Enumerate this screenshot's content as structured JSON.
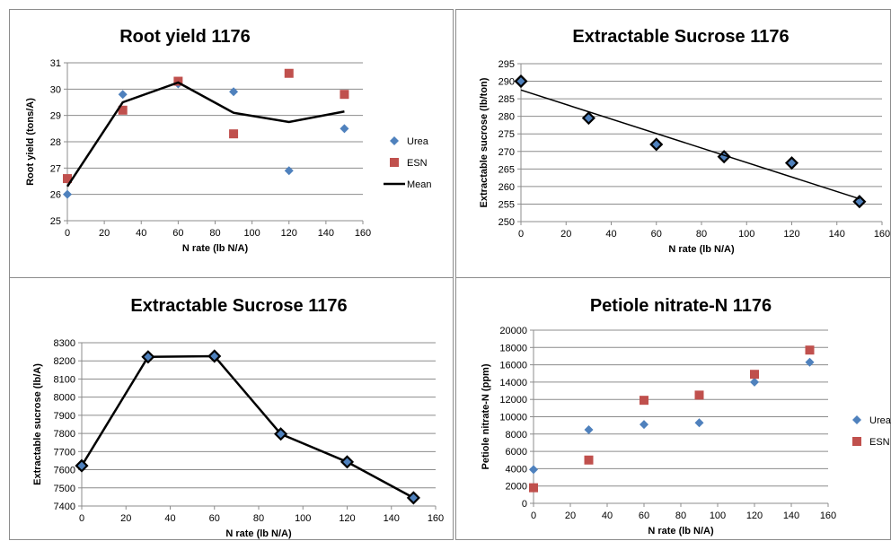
{
  "chart_data": [
    {
      "type": "scatter",
      "title": "Root yield 1176",
      "xlabel": "N rate (lb N/A)",
      "ylabel": "Root yield (tons/A)",
      "xlim": [
        0,
        160
      ],
      "xticks": [
        0,
        20,
        40,
        60,
        80,
        100,
        120,
        140,
        160
      ],
      "ylim": [
        25,
        31
      ],
      "yticks": [
        25,
        26,
        27,
        28,
        29,
        30,
        31
      ],
      "grid": true,
      "legend": "right",
      "series": [
        {
          "name": "Urea",
          "marker": "diamond",
          "color": "#4f81bd",
          "x": [
            0,
            30,
            60,
            90,
            120,
            150
          ],
          "y": [
            26.0,
            29.8,
            30.2,
            29.9,
            26.9,
            28.5
          ]
        },
        {
          "name": "ESN",
          "marker": "square",
          "color": "#c0504d",
          "x": [
            0,
            30,
            60,
            90,
            120,
            150
          ],
          "y": [
            26.6,
            29.2,
            30.3,
            28.3,
            30.6,
            29.8
          ]
        },
        {
          "name": "Mean",
          "marker": "line",
          "color": "#000000",
          "x": [
            0,
            30,
            60,
            90,
            120,
            150
          ],
          "y": [
            26.3,
            29.5,
            30.25,
            29.1,
            28.75,
            29.15
          ]
        }
      ]
    },
    {
      "type": "scatter",
      "title": "Extractable Sucrose 1176",
      "xlabel": "N rate (lb N/A)",
      "ylabel": "Extractable sucrose (lb/ton)",
      "xlim": [
        0,
        160
      ],
      "xticks": [
        0,
        20,
        40,
        60,
        80,
        100,
        120,
        140,
        160
      ],
      "ylim": [
        250,
        295
      ],
      "yticks": [
        250,
        255,
        260,
        265,
        270,
        275,
        280,
        285,
        290,
        295
      ],
      "grid": true,
      "legend": "none",
      "series": [
        {
          "marker": "diamond-outlined",
          "color": "#000000",
          "x": [
            0,
            30,
            60,
            90,
            120,
            150
          ],
          "y": [
            290.0,
            279.5,
            272.0,
            268.5,
            266.7,
            255.7
          ]
        },
        {
          "marker": "trendline",
          "color": "#000000",
          "x": [
            0,
            150
          ],
          "y": [
            287.5,
            256.5
          ]
        }
      ]
    },
    {
      "type": "line",
      "title": "Extractable Sucrose 1176",
      "xlabel": "N rate (lb N/A)",
      "ylabel": "Extractable sucrose (lb/A)",
      "xlim": [
        0,
        160
      ],
      "xticks": [
        0,
        20,
        40,
        60,
        80,
        100,
        120,
        140,
        160
      ],
      "ylim": [
        7400,
        8300
      ],
      "yticks": [
        7400,
        7500,
        7600,
        7700,
        7800,
        7900,
        8000,
        8100,
        8200,
        8300
      ],
      "grid": true,
      "legend": "none",
      "series": [
        {
          "marker": "diamond-outlined",
          "color": "#000000",
          "x": [
            0,
            30,
            60,
            90,
            120,
            150
          ],
          "y": [
            7622,
            8222,
            8226,
            7797,
            7643,
            7445
          ]
        }
      ]
    },
    {
      "type": "scatter",
      "title": "Petiole nitrate-N 1176",
      "xlabel": "N rate (lb N/A)",
      "ylabel": "Petiole nitrate-N (ppm)",
      "xlim": [
        0,
        160
      ],
      "xticks": [
        0,
        20,
        40,
        60,
        80,
        100,
        120,
        140,
        160
      ],
      "ylim": [
        0,
        20000
      ],
      "yticks": [
        0,
        2000,
        4000,
        6000,
        8000,
        10000,
        12000,
        14000,
        16000,
        18000,
        20000
      ],
      "grid": true,
      "legend": "right",
      "series": [
        {
          "name": "Urea",
          "marker": "diamond",
          "color": "#4f81bd",
          "x": [
            0,
            30,
            60,
            90,
            120,
            150
          ],
          "y": [
            3900,
            8500,
            9100,
            9300,
            14000,
            16300
          ]
        },
        {
          "name": "ESN",
          "marker": "square",
          "color": "#c0504d",
          "x": [
            0,
            30,
            60,
            90,
            120,
            150
          ],
          "y": [
            1800,
            5000,
            11900,
            12500,
            14900,
            17700
          ]
        }
      ]
    }
  ]
}
